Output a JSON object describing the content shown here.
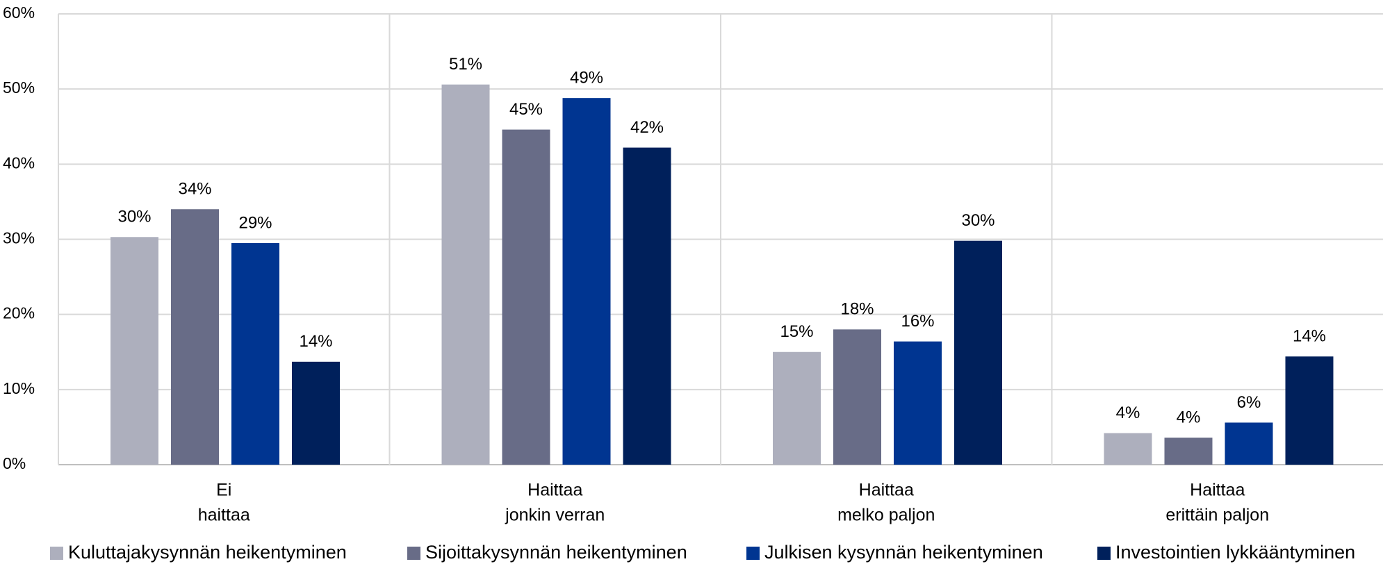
{
  "chart_data": {
    "type": "bar",
    "categories": [
      [
        "Ei",
        "haittaa"
      ],
      [
        "Haittaa",
        "jonkin verran"
      ],
      [
        "Haittaa",
        "melko paljon"
      ],
      [
        "Haittaa",
        "erittäin paljon"
      ]
    ],
    "series": [
      {
        "name": "Kuluttajakysynnän heikentyminen",
        "color": "#adafbd",
        "values": [
          30.3,
          50.6,
          15.0,
          4.2
        ],
        "value_labels": [
          "30%",
          "51%",
          "15%",
          "4%"
        ]
      },
      {
        "name": "Sijoittakysynnän heikentyminen",
        "color": "#686c87",
        "values": [
          34.0,
          44.6,
          18.0,
          3.6
        ],
        "value_labels": [
          "34%",
          "45%",
          "18%",
          "4%"
        ]
      },
      {
        "name": "Julkisen kysynnän heikentyminen",
        "color": "#003591",
        "values": [
          29.5,
          48.8,
          16.4,
          5.6
        ],
        "value_labels": [
          "29%",
          "49%",
          "16%",
          "6%"
        ]
      },
      {
        "name": "Investointien lykkääntyminen",
        "color": "#00205b",
        "values": [
          13.7,
          42.2,
          29.8,
          14.4
        ],
        "value_labels": [
          "14%",
          "42%",
          "30%",
          "14%"
        ]
      }
    ],
    "ylim": [
      0,
      60
    ],
    "yticks": [
      {
        "value": 0,
        "label": "0%"
      },
      {
        "value": 10,
        "label": "10%"
      },
      {
        "value": 20,
        "label": "20%"
      },
      {
        "value": 30,
        "label": "30%"
      },
      {
        "value": 40,
        "label": "40%"
      },
      {
        "value": 50,
        "label": "50%"
      },
      {
        "value": 60,
        "label": "60%"
      }
    ],
    "grid": true,
    "legend": "bottom"
  }
}
